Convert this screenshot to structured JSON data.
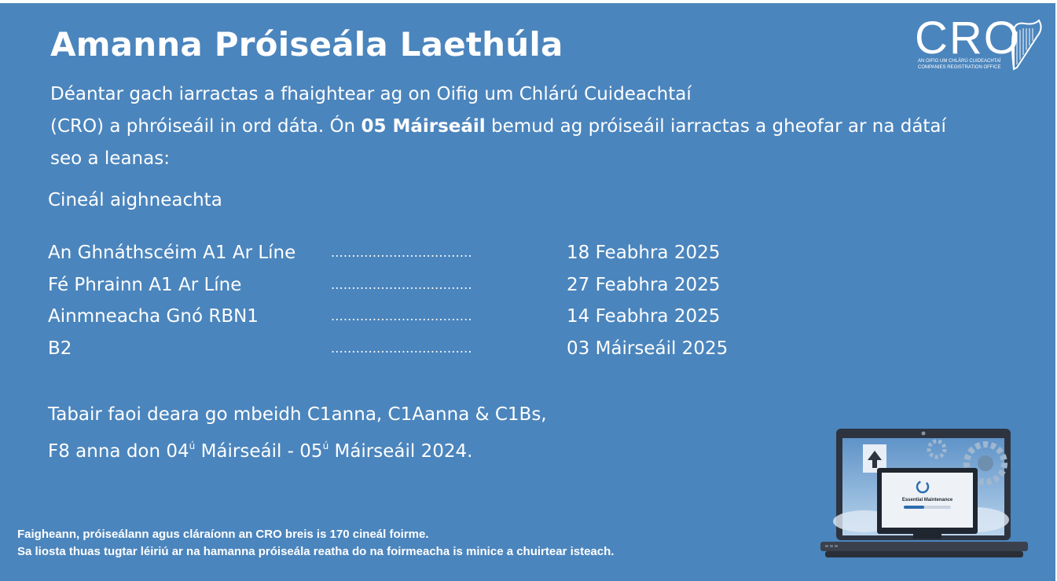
{
  "title": "Amanna Próiseála Laethúla",
  "intro": {
    "line1": "Déantar gach iarractas a fhaightear ag on Oifig um Chlárú Cuideachtaí",
    "line2_before": "(CRO) a phróiseáil in ord dáta. Ón ",
    "line2_bold": "05 Máirseáil",
    "line2_after": " bemud ag próiseáil iarractas a gheofar ar na dátaí",
    "line3": "seo a leanas:"
  },
  "section_label": "Cineál aighneachta",
  "rows": [
    {
      "type": "An Ghnáthscéim A1 Ar Líne",
      "dots": "..................................",
      "date": "18 Feabhra 2025"
    },
    {
      "type": "Fé Phrainn A1 Ar Líne",
      "dots": "..................................",
      "date": "27 Feabhra 2025"
    },
    {
      "type": "Ainmneacha Gnó RBN1",
      "dots": "..................................",
      "date": "14 Feabhra 2025"
    },
    {
      "type": "B2",
      "dots": "..................................",
      "date": "03 Máirseáil 2025"
    }
  ],
  "note": {
    "line1": "Tabair faoi deara go mbeidh C1anna, C1Aanna & C1Bs,",
    "line2_a": "F8 anna don 04",
    "sup1": "ú",
    "line2_b": " Máirseáil - 05",
    "sup2": "ú",
    "line2_c": " Máirseáil 2024."
  },
  "footer": {
    "line1": "Faigheann, próiseálann agus cláraíonn an CRO breis is 170 cineál foirme.",
    "line2": "Sa liosta thuas tugtar léiriú ar na hamanna próiseála reatha do na foirmeacha is minice a chuirtear isteach."
  },
  "logo": {
    "text": "CRO",
    "sub1": "AN OIFIG UM CHLÁRÚ CUIDEACHTAÍ",
    "sub2": "COMPANIES REGISTRATION OFFICE"
  },
  "laptop_screen_text": "Essential Maintenance",
  "colors": {
    "background": "#4b85bd",
    "text": "#ffffff"
  }
}
